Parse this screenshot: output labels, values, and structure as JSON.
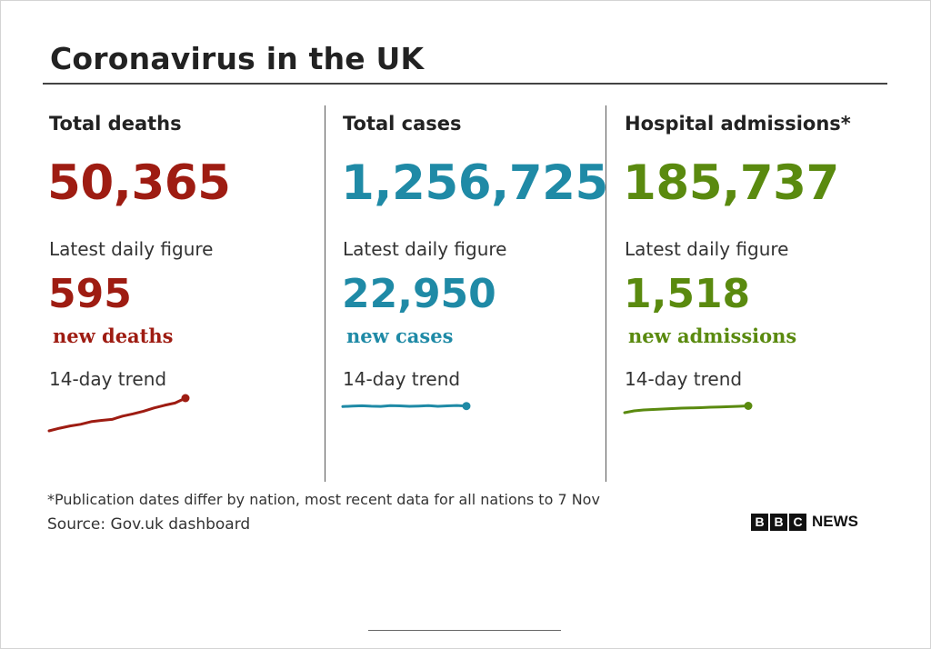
{
  "title": "Coronavirus in the UK",
  "panels": [
    {
      "heading": "Total deaths",
      "total": "50,365",
      "daily_label": "Latest daily figure",
      "daily_value": "595",
      "daily_unit": "new deaths",
      "trend_label": "14-day trend",
      "color": "#9e1c12"
    },
    {
      "heading": "Total cases",
      "total": "1,256,725",
      "daily_label": "Latest daily figure",
      "daily_value": "22,950",
      "daily_unit": "new cases",
      "trend_label": "14-day trend",
      "color": "#1f8aa6"
    },
    {
      "heading": "Hospital admissions*",
      "total": "185,737",
      "daily_label": "Latest daily figure",
      "daily_value": "1,518",
      "daily_unit": "new admissions",
      "trend_label": "14-day trend",
      "color": "#5a8a0f"
    }
  ],
  "footnote": "*Publication dates differ by nation, most recent data for all nations to 7 Nov",
  "source": "Source: Gov.uk dashboard",
  "logo": {
    "letters": [
      "B",
      "B",
      "C"
    ],
    "word": "NEWS"
  },
  "chart_data": [
    {
      "type": "line",
      "series": [
        {
          "values": [
            0.0,
            0.08,
            0.15,
            0.2,
            0.28,
            0.32,
            0.35,
            0.45,
            0.52,
            0.6,
            0.7,
            0.78,
            0.85,
            1.0
          ]
        }
      ]
    },
    {
      "type": "line",
      "series": [
        {
          "values": [
            0.45,
            0.55,
            0.6,
            0.52,
            0.48,
            0.62,
            0.58,
            0.5,
            0.55,
            0.62,
            0.5,
            0.58,
            0.65,
            0.55
          ]
        }
      ]
    },
    {
      "type": "line",
      "series": [
        {
          "values": [
            0.0,
            0.2,
            0.3,
            0.35,
            0.4,
            0.45,
            0.5,
            0.52,
            0.55,
            0.6,
            0.62,
            0.66,
            0.7,
            0.75
          ]
        }
      ]
    }
  ]
}
